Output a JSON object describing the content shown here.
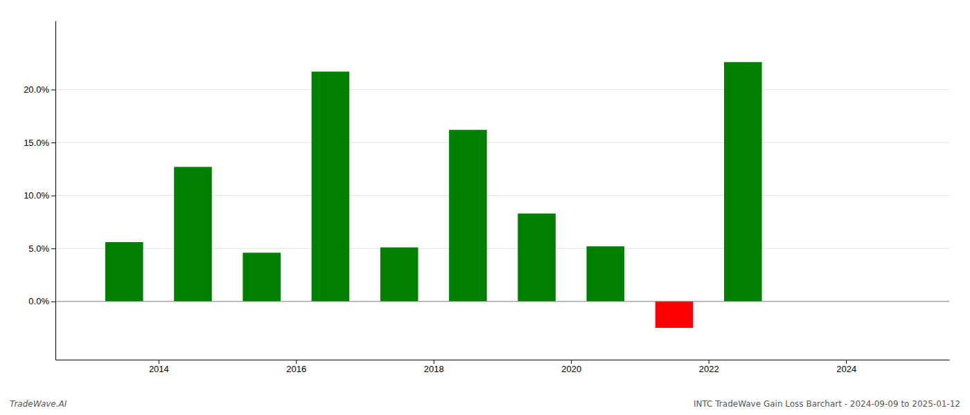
{
  "chart_data": {
    "type": "bar",
    "x": [
      2013.5,
      2014.5,
      2015.5,
      2016.5,
      2017.5,
      2018.5,
      2019.5,
      2020.5,
      2021.5,
      2022.5
    ],
    "values": [
      0.056,
      0.127,
      0.046,
      0.217,
      0.051,
      0.162,
      0.083,
      0.052,
      -0.025,
      0.226
    ],
    "colors": [
      "#008000",
      "#008000",
      "#008000",
      "#008000",
      "#008000",
      "#008000",
      "#008000",
      "#008000",
      "#ff0000",
      "#008000"
    ],
    "xlim": [
      2012.5,
      2025.5
    ],
    "ylim": [
      -0.055,
      0.265
    ],
    "xticks": [
      2014,
      2016,
      2018,
      2020,
      2022,
      2024
    ],
    "yticks": [
      {
        "value": 0.0,
        "label": "0.0%"
      },
      {
        "value": 0.05,
        "label": "5.0%"
      },
      {
        "value": 0.1,
        "label": "10.0%"
      },
      {
        "value": 0.15,
        "label": "15.0%"
      },
      {
        "value": 0.2,
        "label": "20.0%"
      }
    ],
    "grid": true,
    "annotations": [
      "TradeWave.AI",
      "INTC TradeWave Gain Loss Barchart - 2024-09-09 to 2025-01-12"
    ]
  }
}
